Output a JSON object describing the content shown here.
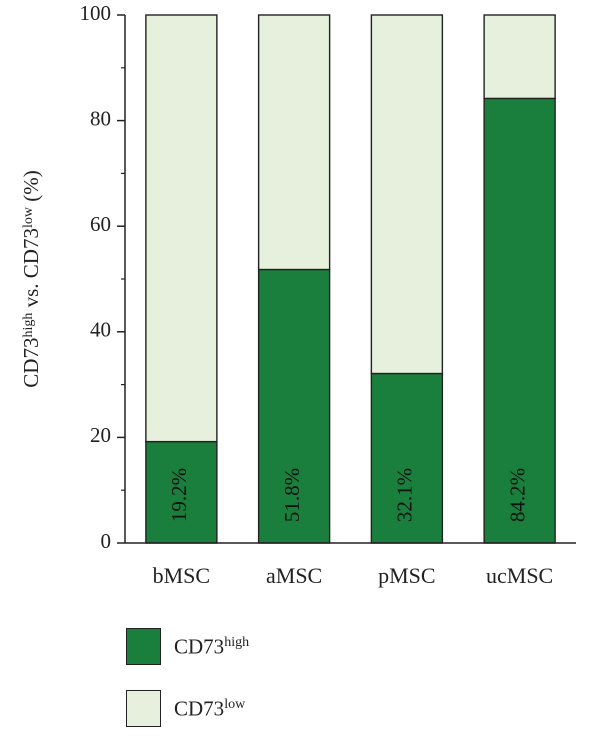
{
  "chart_data": {
    "type": "bar",
    "stacked": true,
    "categories": [
      "bMSC",
      "aMSC",
      "pMSC",
      "ucMSC"
    ],
    "series": [
      {
        "name": "CD73high",
        "values": [
          19.2,
          51.8,
          32.1,
          84.2
        ],
        "color": "#1a7f3c",
        "data_labels": [
          "19.2%",
          "51.8%",
          "32.1%",
          "84.2%"
        ]
      },
      {
        "name": "CD73low",
        "values": [
          80.8,
          48.2,
          67.9,
          15.8
        ],
        "color": "#e6f0dc"
      }
    ],
    "ylim": [
      0,
      100
    ],
    "yticks": [
      0,
      20,
      40,
      60,
      80,
      100
    ],
    "ylabel": {
      "main": "CD73",
      "sup1": "high",
      "mid": " vs. CD73",
      "sup2": "low",
      "tail": " (%)"
    },
    "legend": {
      "position": "bottom-left",
      "entries": [
        {
          "base": "CD73",
          "sup": "high",
          "color": "#1a7f3c"
        },
        {
          "base": "CD73",
          "sup": "low",
          "color": "#e6f0dc"
        }
      ]
    },
    "grid": false
  }
}
